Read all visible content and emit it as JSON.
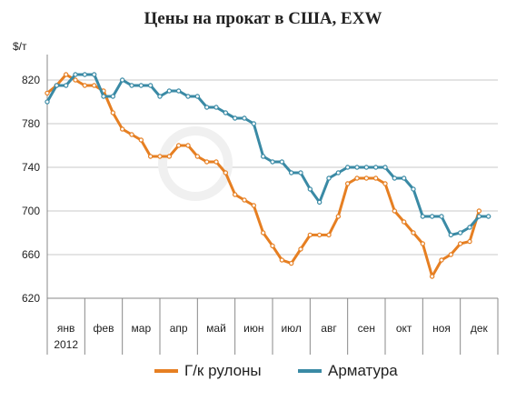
{
  "chart_data": {
    "type": "line",
    "title": "Цены на прокат в США, EXW",
    "ylabel": "$/т",
    "ylim": [
      620,
      840
    ],
    "yticks": [
      620,
      660,
      700,
      740,
      780,
      820
    ],
    "grid": true,
    "legend_position": "bottom",
    "months": [
      "янв",
      "фев",
      "мар",
      "апр",
      "май",
      "июн",
      "июл",
      "авг",
      "сен",
      "окт",
      "ноя",
      "дек"
    ],
    "year_label": "2012",
    "x_range": [
      0,
      48
    ],
    "series": [
      {
        "name": "Г/к рулоны",
        "color": "#E67F22",
        "x": [
          0,
          1,
          2,
          3,
          4,
          5,
          6,
          7,
          8,
          9,
          10,
          11,
          12,
          13,
          14,
          15,
          16,
          17,
          18,
          19,
          20,
          21,
          22,
          23,
          24,
          25,
          26,
          27,
          28,
          29,
          30,
          31,
          32,
          33,
          34,
          35,
          36,
          37,
          38,
          39,
          40,
          41,
          42,
          43,
          44,
          45,
          46
        ],
        "values": [
          808,
          815,
          825,
          820,
          815,
          815,
          810,
          790,
          775,
          770,
          765,
          750,
          750,
          750,
          760,
          760,
          750,
          745,
          745,
          735,
          715,
          710,
          705,
          680,
          668,
          655,
          652,
          665,
          678,
          678,
          678,
          695,
          725,
          730,
          730,
          730,
          725,
          700,
          690,
          680,
          670,
          640,
          655,
          660,
          670,
          672,
          700
        ]
      },
      {
        "name": "Арматура",
        "color": "#3A8AA5",
        "x": [
          0,
          1,
          2,
          3,
          4,
          5,
          6,
          7,
          8,
          9,
          10,
          11,
          12,
          13,
          14,
          15,
          16,
          17,
          18,
          19,
          20,
          21,
          22,
          23,
          24,
          25,
          26,
          27,
          28,
          29,
          30,
          31,
          32,
          33,
          34,
          35,
          36,
          37,
          38,
          39,
          40,
          41,
          42,
          43,
          44,
          45,
          46,
          47
        ],
        "values": [
          800,
          815,
          815,
          825,
          825,
          825,
          805,
          805,
          820,
          815,
          815,
          815,
          805,
          810,
          810,
          805,
          805,
          795,
          795,
          790,
          785,
          785,
          780,
          750,
          745,
          745,
          735,
          735,
          720,
          708,
          730,
          735,
          740,
          740,
          740,
          740,
          740,
          730,
          730,
          720,
          695,
          695,
          695,
          678,
          680,
          685,
          695,
          695
        ]
      }
    ]
  }
}
